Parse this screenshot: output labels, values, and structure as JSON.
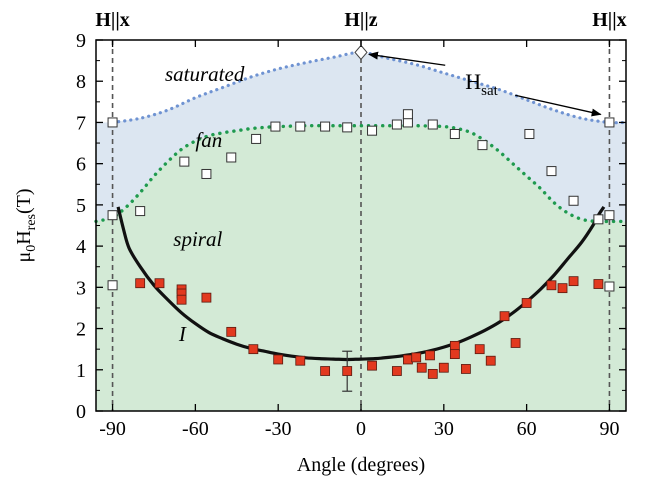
{
  "chart_data": {
    "type": "scatter",
    "xlabel": "Angle (degrees)",
    "ylabel": {
      "base": "μ",
      "base_sub": "0",
      "mid": "H",
      "mid_sub": "res",
      "tail": "(T)"
    },
    "xlim": [
      -96,
      96
    ],
    "ylim": [
      0,
      9
    ],
    "x_ticks": [
      -90,
      -60,
      -30,
      0,
      30,
      60,
      90
    ],
    "x_tick_labels": [
      "-90",
      "-60",
      "-30",
      "0",
      "30",
      "60",
      "90"
    ],
    "y_ticks": [
      0,
      1,
      2,
      3,
      4,
      5,
      6,
      7,
      8,
      9
    ],
    "y_tick_labels": [
      "0",
      "1",
      "2",
      "3",
      "4",
      "5",
      "6",
      "7",
      "8",
      "9"
    ],
    "top_labels": [
      {
        "x": -90,
        "text": "H||x"
      },
      {
        "x": 0,
        "text": "H||z"
      },
      {
        "x": 90,
        "text": "H||x"
      }
    ],
    "region_labels": [
      {
        "text": "saturated",
        "x": -71,
        "y": 8.0
      },
      {
        "text": "fan",
        "x": -60,
        "y": 6.4
      },
      {
        "text": "spiral",
        "x": -68,
        "y": 4.0
      },
      {
        "text": "I",
        "x": -66,
        "y": 1.7
      }
    ],
    "annotation": {
      "text": "H",
      "sub": "sat",
      "x": 45,
      "y": 8.0,
      "arrow_targets": [
        [
          0,
          8.7
        ],
        [
          89,
          7.0
        ]
      ]
    },
    "colors": {
      "saturated_fill": "#dce6f1",
      "low_fill": "#d3ead6",
      "hsat_line": "#6f93d2",
      "fan_line": "#1f9a4f",
      "phase_line": "#111111",
      "filled_marker": "#e2391f",
      "open_marker": "#ffffff",
      "dashed_vertical": "#555555"
    },
    "series": [
      {
        "name": "",
        "style": "blue dotted boundary",
        "x": [
          -90,
          -80,
          -70,
          -60,
          -50,
          -40,
          -30,
          -20,
          -10,
          0,
          10,
          20,
          30,
          40,
          50,
          60,
          70,
          80,
          90,
          96
        ],
        "y": [
          7.0,
          7.1,
          7.3,
          7.6,
          7.85,
          8.1,
          8.3,
          8.45,
          8.58,
          8.7,
          8.55,
          8.4,
          8.2,
          8.0,
          7.8,
          7.55,
          7.3,
          7.1,
          7.0,
          7.0
        ]
      },
      {
        "name": "",
        "style": "green dotted boundary",
        "x": [
          -96,
          -90,
          -85,
          -80,
          -75,
          -70,
          -65,
          -60,
          -55,
          -50,
          -45,
          -40,
          -35,
          -30,
          -20,
          -10,
          0,
          10,
          20,
          30,
          35,
          40,
          45,
          50,
          55,
          60,
          65,
          70,
          75,
          80,
          85,
          90,
          96
        ],
        "y": [
          4.6,
          4.7,
          4.95,
          5.3,
          5.7,
          6.05,
          6.35,
          6.55,
          6.68,
          6.75,
          6.8,
          6.85,
          6.88,
          6.9,
          6.92,
          6.92,
          6.92,
          6.92,
          6.92,
          6.9,
          6.85,
          6.75,
          6.55,
          6.3,
          6.0,
          5.7,
          5.4,
          5.05,
          4.8,
          4.65,
          4.6,
          4.6,
          4.6
        ]
      },
      {
        "name": "",
        "style": "solid black boundary",
        "x": [
          -88,
          -86,
          -84,
          -80,
          -75,
          -70,
          -65,
          -60,
          -55,
          -50,
          -45,
          -40,
          -35,
          -30,
          -25,
          -20,
          -15,
          -10,
          -5,
          0,
          5,
          10,
          15,
          20,
          25,
          30,
          35,
          40,
          45,
          50,
          55,
          60,
          65,
          70,
          75,
          80,
          84,
          86,
          88
        ],
        "y": [
          4.95,
          4.4,
          3.95,
          3.5,
          3.05,
          2.7,
          2.38,
          2.12,
          1.9,
          1.75,
          1.62,
          1.52,
          1.45,
          1.38,
          1.33,
          1.29,
          1.27,
          1.26,
          1.25,
          1.26,
          1.27,
          1.3,
          1.34,
          1.39,
          1.46,
          1.55,
          1.66,
          1.8,
          1.96,
          2.15,
          2.38,
          2.65,
          2.95,
          3.3,
          3.7,
          4.1,
          4.5,
          4.75,
          4.95
        ]
      },
      {
        "name": "",
        "style": "open squares",
        "x": [
          -90,
          -90,
          -90,
          -80,
          -64,
          -56,
          -47,
          -38,
          -31,
          -22,
          -13,
          -5,
          4,
          13,
          17,
          17,
          26,
          34,
          44,
          61,
          69,
          77,
          86,
          90,
          90,
          90
        ],
        "y": [
          7.0,
          4.75,
          3.05,
          4.85,
          6.05,
          5.75,
          6.15,
          6.6,
          6.9,
          6.9,
          6.9,
          6.88,
          6.8,
          6.95,
          7.0,
          7.2,
          6.95,
          6.72,
          6.45,
          6.72,
          5.82,
          5.1,
          4.65,
          7.0,
          4.75,
          3.02
        ]
      },
      {
        "name": "",
        "style": "filled red squares",
        "x": [
          -80,
          -73,
          -65,
          -65,
          -65,
          -56,
          -47,
          -39,
          -30,
          -22,
          -13,
          -5,
          4,
          13,
          17,
          20,
          22,
          25,
          26,
          30,
          34,
          34,
          38,
          43,
          47,
          52,
          56,
          60,
          69,
          73,
          77,
          86
        ],
        "y": [
          3.1,
          3.1,
          2.95,
          2.85,
          2.7,
          2.75,
          1.92,
          1.5,
          1.25,
          1.22,
          0.97,
          0.97,
          1.1,
          0.97,
          1.25,
          1.3,
          1.05,
          1.35,
          0.9,
          1.05,
          1.58,
          1.38,
          1.02,
          1.5,
          1.22,
          2.3,
          1.65,
          2.62,
          3.05,
          2.98,
          3.15,
          3.08
        ]
      }
    ],
    "error_bar": {
      "x": -5,
      "y": 0.97,
      "low": 0.48,
      "high": 1.45
    }
  }
}
